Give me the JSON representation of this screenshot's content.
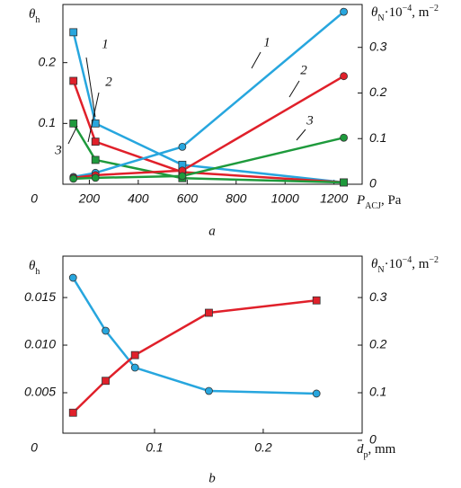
{
  "chart_data": [
    {
      "type": "line",
      "caption": "a",
      "origin_label": "0",
      "xlabel": {
        "symbol": "P",
        "subscript": "ACJ",
        "unit": ", Pa"
      },
      "ylabel": {
        "symbol": "θ",
        "subscript": "h"
      },
      "y2label": {
        "symbol": "θ",
        "subscript": "N",
        "mid": "·10",
        "sup": "−4",
        "unit": ", m",
        "unit_sup": "−2"
      },
      "x": [
        135,
        225,
        580,
        1240
      ],
      "xlim": [
        92,
        1315
      ],
      "xticks": [
        200,
        400,
        600,
        800,
        1000,
        1200
      ],
      "ylim": [
        0,
        0.2956
      ],
      "yticks": [
        0.1,
        0.2
      ],
      "y2lim": [
        0,
        0.394
      ],
      "y2ticks": [
        0,
        0.1,
        0.2,
        0.3
      ],
      "series": [
        {
          "name": "1",
          "color": "#27a6de",
          "marker": "square",
          "values": [
            0.25,
            0.1,
            0.032,
            0.003
          ]
        },
        {
          "name": "2",
          "color": "#e0202a",
          "marker": "square",
          "values": [
            0.17,
            0.07,
            0.02,
            0.003
          ]
        },
        {
          "name": "3",
          "color": "#1e9a3c",
          "marker": "square",
          "values": [
            0.1,
            0.04,
            0.01,
            0.003
          ]
        },
        {
          "name": "1",
          "color": "#27a6de",
          "marker": "circle",
          "axis": "y2",
          "values": [
            0.016,
            0.025,
            0.082,
            0.378
          ]
        },
        {
          "name": "2",
          "color": "#e0202a",
          "marker": "circle",
          "axis": "y2",
          "values": [
            0.014,
            0.02,
            0.03,
            0.237
          ]
        },
        {
          "name": "3",
          "color": "#1e9a3c",
          "marker": "circle",
          "axis": "y2",
          "values": [
            0.012,
            0.014,
            0.018,
            0.102
          ]
        }
      ]
    },
    {
      "type": "line",
      "caption": "b",
      "origin_label": "0",
      "xlabel": {
        "symbol": "d",
        "subscript": "p",
        "unit": ", mm"
      },
      "ylabel": {
        "symbol": "θ",
        "subscript": "h"
      },
      "y2label": {
        "symbol": "θ",
        "subscript": "N",
        "mid": "·10",
        "sup": "−4",
        "unit": ", m",
        "unit_sup": "−2"
      },
      "x": [
        0.025,
        0.055,
        0.082,
        0.15,
        0.249
      ],
      "xlim": [
        0.0157,
        0.291
      ],
      "xticks": [
        0.1,
        0.2
      ],
      "ylim": [
        0.00075,
        0.01935
      ],
      "yticks": [
        0.005,
        {
          "value": 0.01,
          "label": "0.010"
        },
        {
          "value": 0.015,
          "label": "0.015"
        }
      ],
      "y2lim": [
        0.015,
        0.387
      ],
      "y2ticks": [
        0,
        0.1,
        0.2,
        0.3
      ],
      "series": [
        {
          "color": "#27a6de",
          "marker": "circle",
          "values": [
            0.01708,
            0.01151,
            0.00764,
            0.00519,
            0.00491
          ]
        },
        {
          "color": "#e0202a",
          "marker": "square",
          "axis": "y2",
          "values": [
            0.058,
            0.125,
            0.179,
            0.268,
            0.294
          ]
        }
      ]
    }
  ]
}
